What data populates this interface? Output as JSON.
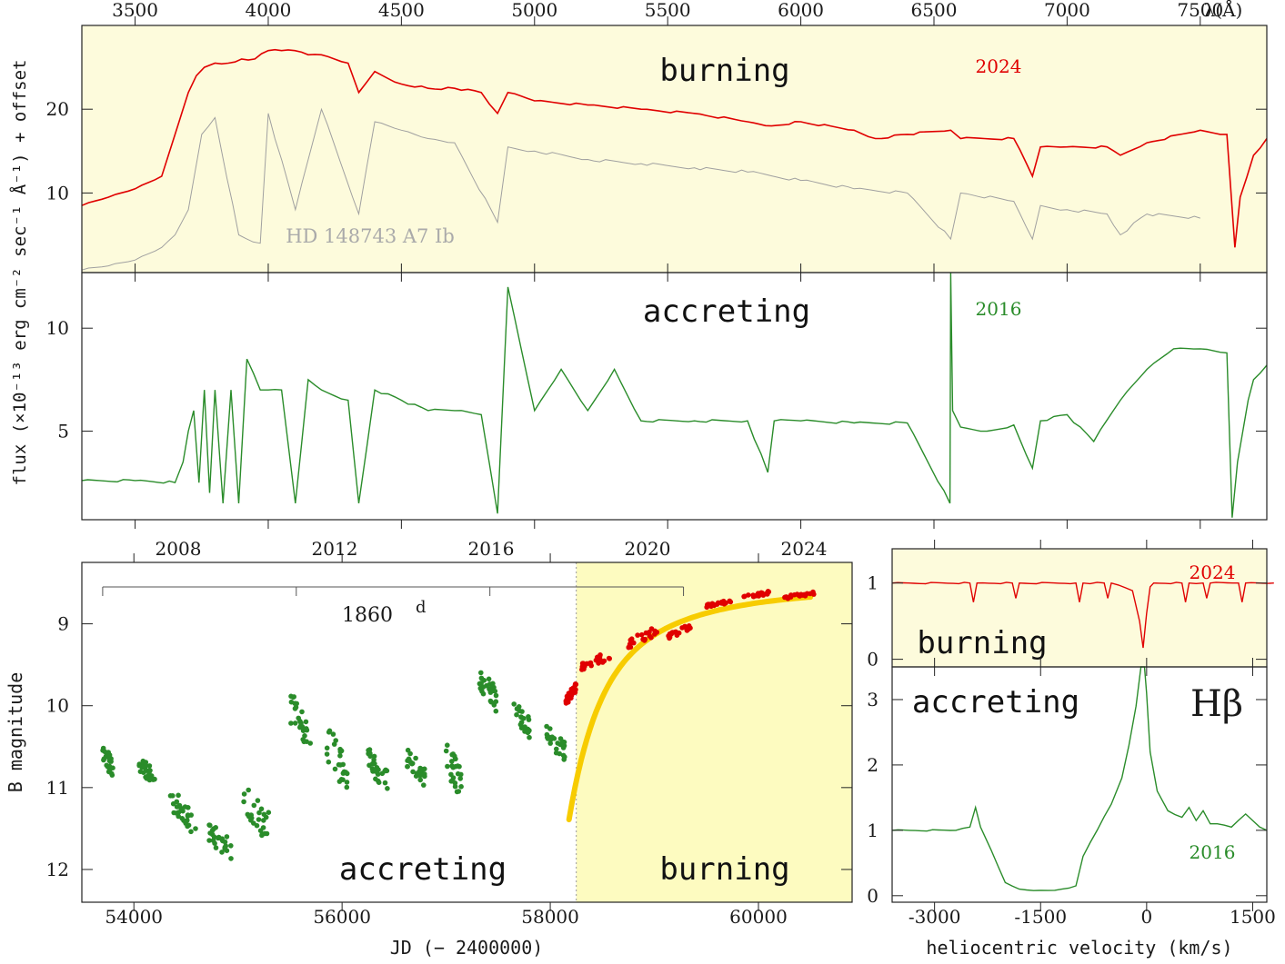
{
  "chart_data": [
    {
      "type": "line",
      "panel": "spectrum-burning",
      "x_axis_label": "λ(Å)",
      "x_ticks": [
        3500,
        4000,
        4500,
        5000,
        5500,
        6000,
        6500,
        7000,
        7500
      ],
      "xlim": [
        3300,
        7750
      ],
      "ylabel": "flux (×10⁻¹³ erg cm⁻² sec⁻¹ Å⁻¹) + offset",
      "y_ticks": [
        10,
        20
      ],
      "ylim": [
        0.5,
        30
      ],
      "label": "burning",
      "year": "2024",
      "comparison_label": "HD  148743  A7 Ib",
      "background": "#fdfbdc",
      "series": [
        {
          "name": "2024",
          "color": "#e00000",
          "x": [
            3300,
            3400,
            3500,
            3600,
            3650,
            3700,
            3730,
            3760,
            3800,
            3850,
            3900,
            3950,
            4000,
            4050,
            4100,
            4150,
            4200,
            4300,
            4340,
            4400,
            4500,
            4600,
            4700,
            4800,
            4861,
            4900,
            5000,
            5200,
            5400,
            5600,
            5800,
            5890,
            6000,
            6200,
            6280,
            6400,
            6563,
            6600,
            6800,
            6870,
            6900,
            7000,
            7150,
            7200,
            7300,
            7500,
            7600,
            7630,
            7650,
            7700,
            7750
          ],
          "y": [
            8.5,
            9.5,
            10.5,
            12,
            17,
            22,
            24,
            25,
            25.5,
            25.5,
            26,
            26,
            27,
            27,
            27,
            26.5,
            26.5,
            25.5,
            22,
            24.5,
            23,
            22.5,
            22.5,
            22,
            19.5,
            22,
            21,
            20.5,
            20,
            19.5,
            18.5,
            18,
            18.5,
            17.5,
            16.5,
            17,
            17.5,
            16.5,
            16.5,
            12,
            15.5,
            15.5,
            15.5,
            14.5,
            16,
            17.5,
            17,
            3.5,
            9.5,
            14.5,
            16.5
          ]
        },
        {
          "name": "HD 148743",
          "color": "#a0a0a0",
          "x": [
            3300,
            3400,
            3500,
            3600,
            3650,
            3700,
            3750,
            3800,
            3889,
            3970,
            4000,
            4102,
            4200,
            4340,
            4400,
            4500,
            4600,
            4700,
            4861,
            4900,
            5000,
            5200,
            5400,
            5600,
            5800,
            6000,
            6200,
            6400,
            6563,
            6600,
            6800,
            6870,
            6900,
            7000,
            7150,
            7200,
            7300,
            7500
          ],
          "y": [
            0.8,
            1.3,
            2,
            3.5,
            5,
            8,
            17,
            19,
            5,
            4,
            19.5,
            8,
            20,
            7.5,
            18.5,
            17.5,
            16.5,
            16,
            6.5,
            15.5,
            15,
            14,
            13.5,
            13,
            12.5,
            11.5,
            10.5,
            10,
            4.5,
            10,
            9,
            4.5,
            8.5,
            8,
            7.5,
            5,
            7.5,
            7
          ]
        }
      ]
    },
    {
      "type": "line",
      "panel": "spectrum-accreting",
      "y_ticks": [
        5,
        10
      ],
      "ylim": [
        0.7,
        12.7
      ],
      "label": "accreting",
      "year": "2016",
      "series": [
        {
          "name": "2016",
          "color": "#2a8c2a",
          "x": [
            3300,
            3500,
            3650,
            3680,
            3700,
            3720,
            3740,
            3760,
            3780,
            3800,
            3830,
            3860,
            3889,
            3920,
            3970,
            4000,
            4050,
            4102,
            4150,
            4200,
            4300,
            4340,
            4400,
            4500,
            4600,
            4700,
            4800,
            4861,
            4900,
            5000,
            5100,
            5200,
            5300,
            5400,
            5600,
            5800,
            5876,
            5900,
            6000,
            6200,
            6400,
            6560,
            6563,
            6570,
            6600,
            6700,
            6800,
            6870,
            6900,
            7000,
            7100,
            7200,
            7300,
            7400,
            7500,
            7600,
            7620,
            7640,
            7680,
            7700,
            7750
          ],
          "y": [
            2.6,
            2.6,
            2.5,
            3.5,
            5,
            6,
            2.5,
            7,
            2,
            7,
            1.5,
            7,
            1.5,
            8.5,
            7,
            7,
            7,
            1.5,
            7.5,
            7,
            6.5,
            1.5,
            7,
            6.5,
            6,
            6,
            5.8,
            1,
            12,
            6,
            8,
            6,
            8,
            5.5,
            5.5,
            5.5,
            3,
            5.5,
            5.5,
            5.4,
            5.4,
            1.5,
            12.7,
            6,
            5.2,
            5,
            5.3,
            3.2,
            5.5,
            5.8,
            4.5,
            6.5,
            8,
            9,
            9,
            8.8,
            0.8,
            3.5,
            6.5,
            7.5,
            8.2
          ]
        }
      ]
    },
    {
      "type": "scatter",
      "panel": "light-curve",
      "xlabel": "JD (− 2400000)",
      "ylabel": "B magnitude",
      "x_ticks": [
        54000,
        56000,
        58000,
        60000
      ],
      "top_ticks": [
        "2008",
        "2012",
        "2016",
        "2020",
        "2024"
      ],
      "y_ticks": [
        9,
        10,
        11,
        12
      ],
      "ylim_inverted": [
        8.25,
        12.4
      ],
      "xlim": [
        53500,
        60900
      ],
      "period_label": "1860",
      "period_superscript": "d",
      "period_marks_jd": [
        53700,
        55560,
        57420,
        59280
      ],
      "accreting_label": "accreting",
      "burning_label": "burning",
      "burning_start_jd": 58250,
      "fit_color": "#f7cc00",
      "accreting_groups": [
        {
          "jd": [
            53690,
            53800
          ],
          "mag": [
            10.4,
            10.9
          ]
        },
        {
          "jd": [
            54050,
            54200
          ],
          "mag": [
            10.6,
            11.0
          ]
        },
        {
          "jd": [
            54350,
            54600
          ],
          "mag": [
            11.0,
            11.6
          ]
        },
        {
          "jd": [
            54700,
            54950
          ],
          "mag": [
            11.4,
            11.9
          ]
        },
        {
          "jd": [
            55050,
            55300
          ],
          "mag": [
            10.9,
            11.7
          ]
        },
        {
          "jd": [
            55500,
            55700
          ],
          "mag": [
            9.8,
            10.6
          ]
        },
        {
          "jd": [
            55850,
            56050
          ],
          "mag": [
            10.2,
            11.1
          ]
        },
        {
          "jd": [
            56250,
            56450
          ],
          "mag": [
            10.5,
            11.1
          ]
        },
        {
          "jd": [
            56600,
            56800
          ],
          "mag": [
            10.5,
            11.0
          ]
        },
        {
          "jd": [
            57000,
            57150
          ],
          "mag": [
            10.4,
            11.2
          ]
        },
        {
          "jd": [
            57300,
            57500
          ],
          "mag": [
            9.5,
            10.1
          ]
        },
        {
          "jd": [
            57650,
            57800
          ],
          "mag": [
            9.9,
            10.4
          ]
        },
        {
          "jd": [
            57950,
            58150
          ],
          "mag": [
            10.2,
            10.7
          ]
        }
      ],
      "burning_groups": [
        {
          "jd": [
            58150,
            58250
          ],
          "mag": [
            9.7,
            10.0
          ]
        },
        {
          "jd": [
            58300,
            58600
          ],
          "mag": [
            9.3,
            9.6
          ]
        },
        {
          "jd": [
            58750,
            59050
          ],
          "mag": [
            9.0,
            9.3
          ]
        },
        {
          "jd": [
            59100,
            59350
          ],
          "mag": [
            9.0,
            9.2
          ]
        },
        {
          "jd": [
            59500,
            59750
          ],
          "mag": [
            8.7,
            8.8
          ]
        },
        {
          "jd": [
            59850,
            60100
          ],
          "mag": [
            8.6,
            8.7
          ]
        },
        {
          "jd": [
            60250,
            60550
          ],
          "mag": [
            8.6,
            8.7
          ]
        }
      ]
    },
    {
      "type": "line",
      "panel": "hbeta-burning",
      "y_ticks": [
        0,
        1
      ],
      "ylim": [
        -0.1,
        1.45
      ],
      "label": "burning",
      "year": "2024",
      "series": [
        {
          "name": "2024",
          "color": "#e00000",
          "x": [
            -3600,
            -2500,
            -2450,
            -2400,
            -1900,
            -1850,
            -1800,
            -1000,
            -950,
            -900,
            -600,
            -550,
            -500,
            -200,
            -100,
            -50,
            0,
            50,
            100,
            500,
            550,
            600,
            800,
            850,
            900,
            1300,
            1350,
            1400,
            1800
          ],
          "y": [
            1,
            1,
            0.75,
            1,
            1,
            0.8,
            1,
            1,
            0.75,
            1,
            1,
            0.8,
            1,
            0.9,
            0.5,
            0.15,
            0.6,
            0.95,
            1,
            1,
            0.75,
            1,
            1,
            0.8,
            1,
            1,
            0.75,
            1,
            1
          ]
        }
      ]
    },
    {
      "type": "line",
      "panel": "hbeta-accreting",
      "xlabel": "heliocentric velocity (km/s)",
      "x_ticks": [
        -3000,
        -1500,
        0,
        1500
      ],
      "xlim": [
        -3600,
        1700
      ],
      "y_ticks": [
        0,
        1,
        2,
        3
      ],
      "ylim": [
        -0.1,
        3.5
      ],
      "label": "accreting",
      "line_label": "Hβ",
      "year": "2016",
      "series": [
        {
          "name": "2016",
          "color": "#2a8c2a",
          "x": [
            -3600,
            -2700,
            -2500,
            -2420,
            -2350,
            -2200,
            -2000,
            -1800,
            -1500,
            -1200,
            -1000,
            -900,
            -700,
            -500,
            -350,
            -250,
            -150,
            -80,
            -30,
            0,
            50,
            150,
            300,
            500,
            600,
            700,
            800,
            900,
            1000,
            1200,
            1400,
            1600,
            1700
          ],
          "y": [
            1,
            1,
            1.05,
            1.35,
            1.05,
            0.7,
            0.2,
            0.1,
            0.08,
            0.1,
            0.15,
            0.6,
            1.0,
            1.4,
            1.8,
            2.3,
            2.9,
            3.5,
            3.5,
            3.1,
            2.2,
            1.6,
            1.3,
            1.2,
            1.35,
            1.15,
            1.3,
            1.1,
            1.1,
            1.05,
            1.25,
            1.05,
            1.0
          ]
        }
      ]
    }
  ]
}
